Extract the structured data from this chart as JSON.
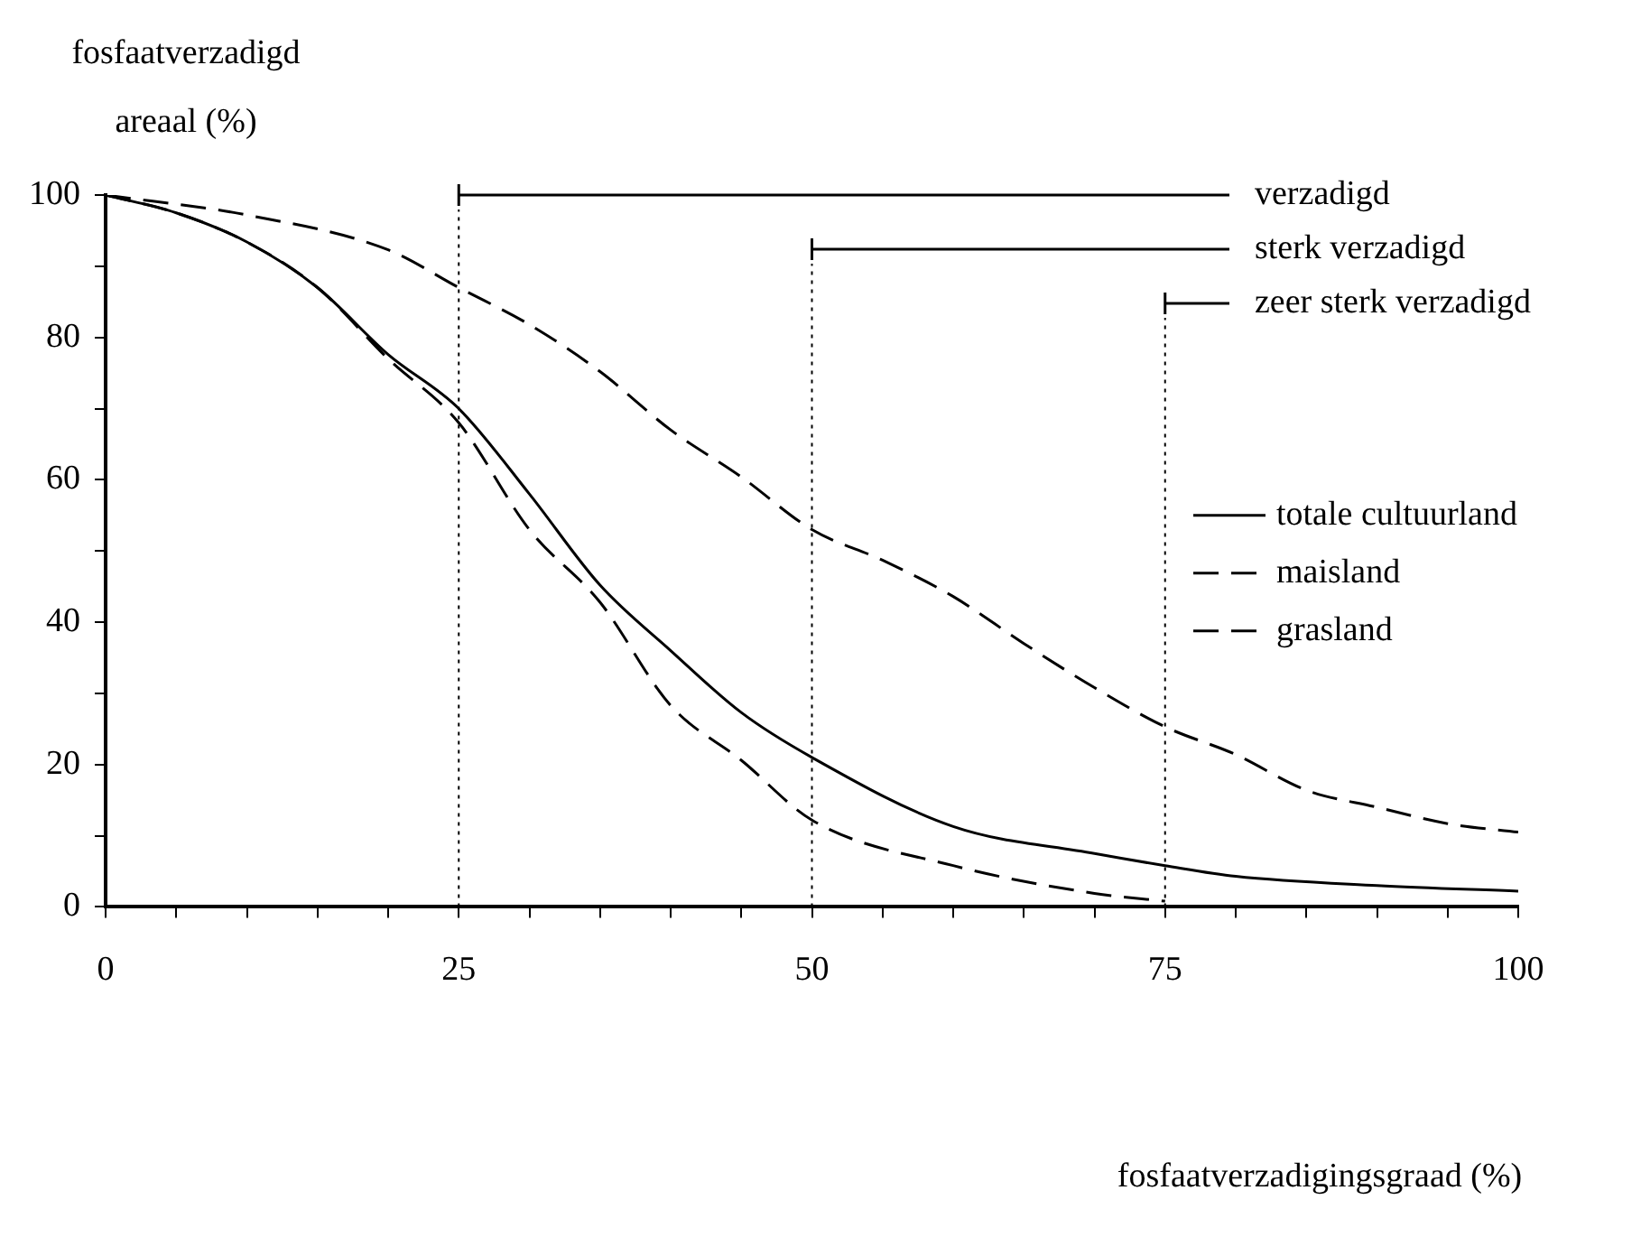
{
  "chart_data": {
    "type": "line",
    "xlabel": "fosfaatverzadigingsgraad (%)",
    "ylabel": "fosfaatverzadigd areaal (%)",
    "xlim": [
      0,
      100
    ],
    "ylim": [
      0,
      100
    ],
    "xticks": [
      0,
      {
        "value": 5,
        "label": null
      },
      {
        "value": 10,
        "label": null
      },
      {
        "value": 15,
        "label": null
      },
      {
        "value": 20,
        "label": null
      },
      25,
      {
        "value": 30,
        "label": null
      },
      {
        "value": 35,
        "label": null
      },
      {
        "value": 40,
        "label": null
      },
      {
        "value": 45,
        "label": null
      },
      50,
      {
        "value": 55,
        "label": null
      },
      {
        "value": 60,
        "label": null
      },
      {
        "value": 65,
        "label": null
      },
      {
        "value": 70,
        "label": null
      },
      75,
      {
        "value": 80,
        "label": null
      },
      {
        "value": 85,
        "label": null
      },
      {
        "value": 90,
        "label": null
      },
      {
        "value": 95,
        "label": null
      },
      100
    ],
    "yticks": [
      0,
      {
        "value": 10,
        "label": null
      },
      20,
      {
        "value": 30,
        "label": null
      },
      40,
      {
        "value": 50,
        "label": null
      },
      60,
      {
        "value": 70,
        "label": null
      },
      80,
      {
        "value": 90,
        "label": null
      },
      100
    ],
    "marker": "none",
    "legend": "right",
    "series": [
      {
        "name": "totale cultuurland",
        "color": "#000000",
        "line_style": "solid",
        "x": [
          0,
          5,
          10,
          15,
          20,
          25,
          30,
          35,
          40,
          45,
          50,
          60,
          70,
          75,
          80,
          90,
          100
        ],
        "values": [
          100,
          97.5,
          93.4,
          87,
          77.6,
          70,
          58,
          45.2,
          36,
          27.3,
          21,
          11.3,
          7.5,
          5.8,
          4.3,
          3,
          2.2
        ]
      },
      {
        "name": "maisland",
        "color": "#000000",
        "line_style": "dashed",
        "x": [
          0,
          10,
          20,
          25,
          30,
          35,
          40,
          45,
          50,
          55,
          60,
          65,
          70,
          75,
          80,
          85,
          90,
          95,
          100
        ],
        "values": [
          100,
          97.2,
          92.3,
          87,
          81.8,
          75.2,
          67,
          60.4,
          53,
          48.7,
          43.6,
          37,
          30.8,
          25.3,
          21.4,
          16.4,
          14,
          11.7,
          10.5
        ]
      },
      {
        "name": "grasland",
        "color": "#000000",
        "line_style": "dashed",
        "x": [
          0,
          5,
          10,
          15,
          20,
          25,
          30,
          35,
          40,
          45,
          50,
          60,
          70,
          75
        ],
        "values": [
          100,
          97.5,
          93.4,
          87,
          77,
          68,
          53,
          42.8,
          28.3,
          20.6,
          12.2,
          5.8,
          1.9,
          0.8
        ]
      }
    ],
    "ref_lines": [
      {
        "axis": "x",
        "value": 25,
        "color": "#000000",
        "line_style": "dotted",
        "label": "verzadigd"
      },
      {
        "axis": "x",
        "value": 50,
        "color": "#000000",
        "line_style": "dotted",
        "label": "sterk verzadigd"
      },
      {
        "axis": "x",
        "value": 75,
        "color": "#000000",
        "line_style": "dotted",
        "label": "zeer sterk verzadigd"
      }
    ]
  }
}
